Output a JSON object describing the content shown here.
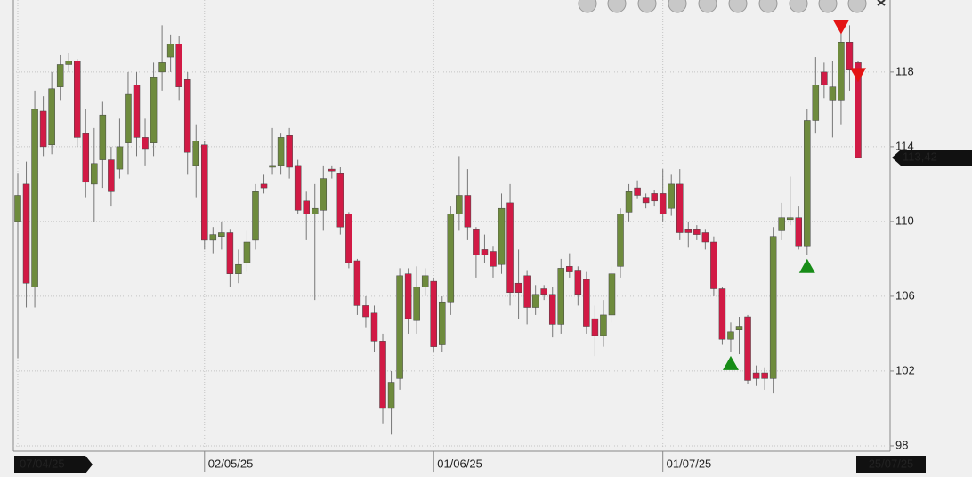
{
  "chart_data": {
    "type": "candlestick",
    "categories": [
      "07/04/25",
      null,
      null,
      null,
      null,
      null,
      null,
      null,
      null,
      null,
      null,
      null,
      null,
      null,
      null,
      null,
      null,
      null,
      null,
      null,
      null,
      null,
      "02/05/25",
      null,
      null,
      null,
      null,
      null,
      null,
      null,
      null,
      null,
      null,
      null,
      null,
      null,
      null,
      null,
      null,
      null,
      null,
      null,
      null,
      null,
      null,
      null,
      null,
      null,
      null,
      "01/06/25",
      null,
      null,
      null,
      null,
      null,
      null,
      null,
      null,
      null,
      null,
      null,
      null,
      null,
      null,
      null,
      null,
      null,
      null,
      null,
      null,
      null,
      null,
      null,
      null,
      null,
      null,
      "01/07/25",
      null,
      null,
      null,
      null,
      null,
      null,
      null,
      null,
      null,
      null,
      null,
      null,
      null,
      null,
      null,
      null,
      null,
      null,
      null,
      null,
      null,
      null,
      "25/07/25"
    ],
    "open": [
      110,
      112,
      106.5,
      115.9,
      114.1,
      117.2,
      118.4,
      118.6,
      114.7,
      112.0,
      113.3,
      113.3,
      112.8,
      114.2,
      117.3,
      114.5,
      114.2,
      118.0,
      118.8,
      119.5,
      117.6,
      113.0,
      114.1,
      109.0,
      109.2,
      109.4,
      107.2,
      107.8,
      109.0,
      112.0,
      112.9,
      113.0,
      114.6,
      113.0,
      111.1,
      110.4,
      110.6,
      112.8,
      112.6,
      110.4,
      107.9,
      105.5,
      105.1,
      103.6,
      100.0,
      101.6,
      107.2,
      104.7,
      106.5,
      106.8,
      103.4,
      105.7,
      110.4,
      111.4,
      109.6,
      108.5,
      108.4,
      107.7,
      111.0,
      106.7,
      107.1,
      105.4,
      106.4,
      106.1,
      104.5,
      107.6,
      107.4,
      106.9,
      104.8,
      103.9,
      105.0,
      107.6,
      110.5,
      111.8,
      111.3,
      111.5,
      111.5,
      110.7,
      112.0,
      109.6,
      109.6,
      109.4,
      108.9,
      106.4,
      103.7,
      104.2,
      104.9,
      101.9,
      101.9,
      101.6,
      109.5,
      110.1,
      110.2,
      108.7,
      115.4,
      118.0,
      116.5,
      116.5,
      119.6,
      118.5
    ],
    "high": [
      112.6,
      113.2,
      117.0,
      116.7,
      118.0,
      118.9,
      119.0,
      118.7,
      116.0,
      115.0,
      116.4,
      114.0,
      115.5,
      118.0,
      118.0,
      115.5,
      118.5,
      120.5,
      120.0,
      119.9,
      118.0,
      115.2,
      114.3,
      109.7,
      110.0,
      109.6,
      108.5,
      109.5,
      112.0,
      112.5,
      115.0,
      114.7,
      115.0,
      113.3,
      111.6,
      112.0,
      113.0,
      113.0,
      112.9,
      110.5,
      108.0,
      106.0,
      105.5,
      104.0,
      102.0,
      107.5,
      107.5,
      107.6,
      107.5,
      107.0,
      106.0,
      110.8,
      113.5,
      112.8,
      109.7,
      109.3,
      108.7,
      111.5,
      112.0,
      108.5,
      107.4,
      106.6,
      106.6,
      106.5,
      108.0,
      108.3,
      107.6,
      107.3,
      105.5,
      105.8,
      107.6,
      110.7,
      112.0,
      112.2,
      111.5,
      111.7,
      112.8,
      112.5,
      112.8,
      110.0,
      109.8,
      109.6,
      109.2,
      106.5,
      104.6,
      104.9,
      105.0,
      102.3,
      102.2,
      109.7,
      111.0,
      112.4,
      110.8,
      116.0,
      118.8,
      118.5,
      118.6,
      120.4,
      120.5,
      118.6
    ],
    "low": [
      102.7,
      105.4,
      105.4,
      113.5,
      113.6,
      116.5,
      118.0,
      114.0,
      111.3,
      110.0,
      111.8,
      110.8,
      112.3,
      112.5,
      113.5,
      113.0,
      113.5,
      117.0,
      118.0,
      116.5,
      112.5,
      111.3,
      108.5,
      108.3,
      108.5,
      106.5,
      106.7,
      107.3,
      108.5,
      111.5,
      112.5,
      112.5,
      112.3,
      110.4,
      109.0,
      105.8,
      109.5,
      112.3,
      109.3,
      107.5,
      105.0,
      104.3,
      103.0,
      99.2,
      98.6,
      101.0,
      104.0,
      104.0,
      106.0,
      103.0,
      103.0,
      105.0,
      109.5,
      109.0,
      107.0,
      107.8,
      107.0,
      107.2,
      105.5,
      104.8,
      104.5,
      105.0,
      105.8,
      103.8,
      104.0,
      107.0,
      105.5,
      104.0,
      102.8,
      103.3,
      104.6,
      107.0,
      110.0,
      111.2,
      110.7,
      110.8,
      110.0,
      110.3,
      109.0,
      108.6,
      109.0,
      108.5,
      106.0,
      103.4,
      103.0,
      102.9,
      101.3,
      101.2,
      101.0,
      100.8,
      109.0,
      109.8,
      108.5,
      108.2,
      114.7,
      116.6,
      114.5,
      115.2,
      117.0,
      113.42
    ],
    "close": [
      111.4,
      106.7,
      116.0,
      114.0,
      117.1,
      118.4,
      118.6,
      114.5,
      112.1,
      113.1,
      115.7,
      111.6,
      114.0,
      116.8,
      114.5,
      113.9,
      117.7,
      118.5,
      119.5,
      117.2,
      113.7,
      114.3,
      109.0,
      109.3,
      109.4,
      107.2,
      107.7,
      108.9,
      111.6,
      111.8,
      113.0,
      114.5,
      112.9,
      110.6,
      110.4,
      110.7,
      112.3,
      112.7,
      109.7,
      107.8,
      105.5,
      104.9,
      103.6,
      100.0,
      101.4,
      107.1,
      104.8,
      106.5,
      107.1,
      103.3,
      105.7,
      110.4,
      111.4,
      109.7,
      108.2,
      108.2,
      107.6,
      110.7,
      106.2,
      106.2,
      105.4,
      106.1,
      106.1,
      104.5,
      107.5,
      107.3,
      106.1,
      104.4,
      103.9,
      105.0,
      107.2,
      110.4,
      111.6,
      111.4,
      111.0,
      111.1,
      110.4,
      112.0,
      109.4,
      109.4,
      109.3,
      108.9,
      106.4,
      103.7,
      104.1,
      104.4,
      101.5,
      101.6,
      101.6,
      109.2,
      110.2,
      110.2,
      108.7,
      115.4,
      117.3,
      117.3,
      117.2,
      119.6,
      118.1,
      113.42
    ],
    "up_color": "#6e8b3d",
    "down_color": "#d11a45",
    "buy_signals": [
      84,
      93
    ],
    "sell_signals": [
      97,
      99
    ],
    "buy_color": "#178c17",
    "sell_color": "#e41414",
    "last_price": {
      "value": 113.42,
      "label": "113,42"
    },
    "ylim": [
      97.95,
      121.85
    ],
    "yticks": [
      98,
      102,
      106,
      110,
      114,
      118
    ],
    "grid": true
  }
}
